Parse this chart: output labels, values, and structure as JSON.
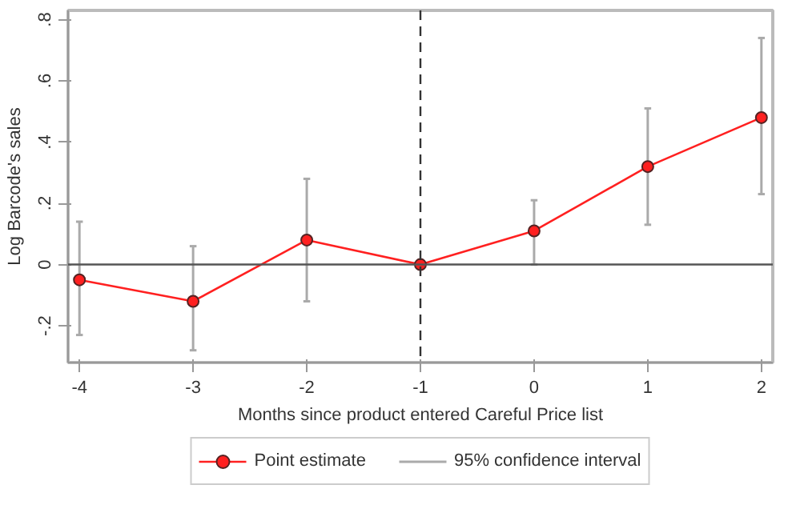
{
  "chart_data": {
    "type": "line",
    "xlabel": "Months since product entered Careful Price list",
    "ylabel": "Log Barcode's sales",
    "x": [
      -4,
      -3,
      -2,
      -1,
      0,
      1,
      2
    ],
    "series": [
      {
        "name": "Point estimate",
        "color": "#ff2020",
        "values": [
          -0.05,
          -0.12,
          0.08,
          0.0,
          0.11,
          0.32,
          0.48
        ],
        "errors": [
          [
            -0.23,
            0.14
          ],
          [
            -0.28,
            0.06
          ],
          [
            -0.12,
            0.28
          ],
          null,
          [
            0.0,
            0.21
          ],
          [
            0.13,
            0.51
          ],
          [
            0.23,
            0.74
          ]
        ]
      }
    ],
    "annotations": [
      "95% confidence interval"
    ],
    "xlim": [
      -4.1,
      2.1
    ],
    "ylim": [
      -0.32,
      0.83
    ],
    "xticks": [
      -4,
      -3,
      -2,
      -1,
      0,
      1,
      2
    ],
    "yticks": [
      {
        "value": -0.2,
        "label": "-.2"
      },
      0,
      {
        "value": 0.2,
        "label": ".2"
      },
      {
        "value": 0.4,
        "label": ".4"
      },
      {
        "value": 0.6,
        "label": ".6"
      },
      {
        "value": 0.8,
        "label": ".8"
      }
    ],
    "ref_lines": [
      {
        "axis": "y",
        "value": 0,
        "color": "#555555",
        "line_style": "solid"
      },
      {
        "axis": "x",
        "value": -1,
        "color": "#333333",
        "line_style": "dashed"
      }
    ],
    "marker": "circle",
    "line_style": "solid",
    "grid": false,
    "legend": "bottom"
  }
}
